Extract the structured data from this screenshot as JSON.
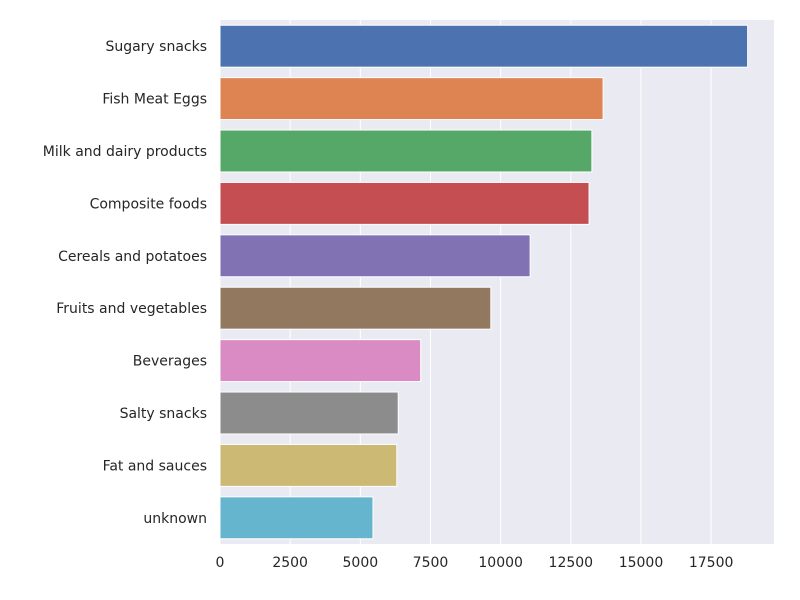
{
  "chart_data": {
    "type": "bar",
    "orientation": "horizontal",
    "title": "",
    "xlabel": "",
    "ylabel": "",
    "categories": [
      "Sugary snacks",
      "Fish Meat Eggs",
      "Milk and dairy products",
      "Composite foods",
      "Cereals and potatoes",
      "Fruits and vegetables",
      "Beverages",
      "Salty snacks",
      "Fat and sauces",
      "unknown"
    ],
    "values": [
      18800,
      13650,
      13250,
      13150,
      11050,
      9650,
      7150,
      6350,
      6300,
      5450
    ],
    "colors": [
      "#4c72b0",
      "#dd8452",
      "#55a868",
      "#c44e52",
      "#8172b3",
      "#937860",
      "#da8bc3",
      "#8c8c8c",
      "#ccb974",
      "#64b5cd"
    ],
    "xlim": [
      0,
      19740
    ],
    "xticks": [
      0,
      2500,
      5000,
      7500,
      10000,
      12500,
      15000,
      17500
    ],
    "xtick_labels": [
      "0",
      "2500",
      "5000",
      "7500",
      "10000",
      "12500",
      "15000",
      "17500"
    ],
    "grid": true,
    "background": "#eaeaf2",
    "grid_color": "#ffffff"
  }
}
